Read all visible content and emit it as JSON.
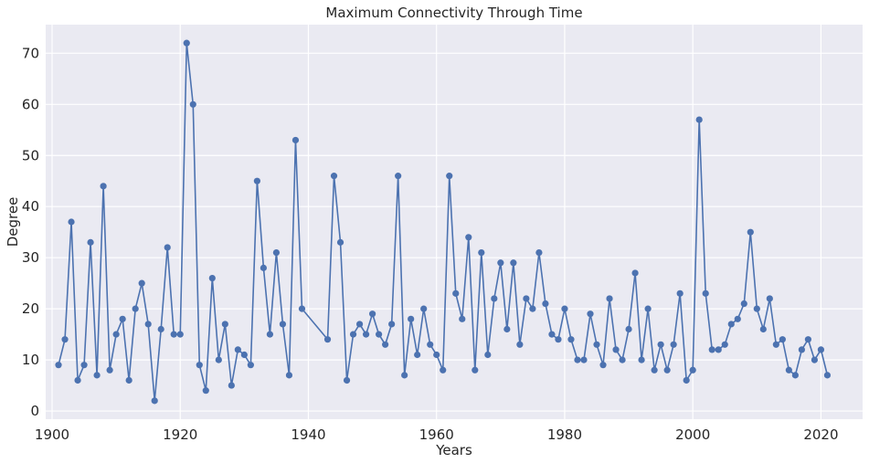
{
  "chart_data": {
    "type": "line",
    "title": "Maximum Connectivity Through Time",
    "xlabel": "Years",
    "ylabel": "Degree",
    "xlim": [
      1899.0,
      2026.5
    ],
    "ylim": [
      -1.6,
      75.6
    ],
    "xticks": [
      1900,
      1920,
      1940,
      1960,
      1980,
      2000,
      2020
    ],
    "yticks": [
      0,
      10,
      20,
      30,
      40,
      50,
      60,
      70
    ],
    "grid": true,
    "markers": true,
    "colors": {
      "series": "#4c72b0",
      "background": "#eaeaf2",
      "grid": "#ffffff",
      "text": "#262626"
    },
    "series": [
      {
        "x": [
          1901,
          1902,
          1903,
          1904,
          1905,
          1906,
          1907,
          1908,
          1909,
          1910,
          1911,
          1912,
          1913,
          1914,
          1915,
          1916,
          1917,
          1918,
          1919,
          1920,
          1921,
          1922,
          1923,
          1924,
          1925,
          1926,
          1927,
          1928,
          1929,
          1930,
          1931,
          1932,
          1933,
          1934,
          1935,
          1936,
          1937,
          1938,
          1939,
          1943,
          1944,
          1945,
          1946,
          1947,
          1948,
          1949,
          1950,
          1951,
          1952,
          1953,
          1954,
          1955,
          1956,
          1957,
          1958,
          1959,
          1960,
          1961,
          1962,
          1963,
          1964,
          1965,
          1966,
          1967,
          1968,
          1969,
          1970,
          1971,
          1972,
          1973,
          1974,
          1975,
          1976,
          1977,
          1978,
          1979,
          1980,
          1981,
          1982,
          1983,
          1984,
          1985,
          1986,
          1987,
          1988,
          1989,
          1990,
          1991,
          1992,
          1993,
          1994,
          1995,
          1996,
          1997,
          1998,
          1999,
          2000,
          2001,
          2002,
          2003,
          2004,
          2005,
          2006,
          2007,
          2008,
          2009,
          2010,
          2011,
          2012,
          2013,
          2014,
          2015,
          2016,
          2017,
          2018,
          2019,
          2020,
          2021
        ],
        "values": [
          9,
          14,
          37,
          6,
          9,
          33,
          7,
          44,
          8,
          15,
          18,
          6,
          20,
          25,
          17,
          2,
          16,
          32,
          15,
          15,
          72,
          60,
          9,
          4,
          26,
          10,
          17,
          5,
          12,
          11,
          9,
          45,
          28,
          15,
          31,
          17,
          7,
          53,
          20,
          14,
          46,
          33,
          6,
          15,
          17,
          15,
          19,
          15,
          13,
          17,
          46,
          7,
          18,
          11,
          20,
          13,
          11,
          8,
          46,
          23,
          18,
          34,
          8,
          31,
          11,
          22,
          29,
          16,
          29,
          13,
          22,
          20,
          31,
          21,
          15,
          14,
          20,
          14,
          10,
          10,
          19,
          13,
          9,
          22,
          12,
          10,
          16,
          27,
          10,
          20,
          8,
          13,
          8,
          13,
          23,
          6,
          8,
          57,
          23,
          12,
          12,
          13,
          17,
          18,
          21,
          35,
          20,
          16,
          22,
          13,
          14,
          8,
          7,
          12,
          14,
          10,
          12,
          7
        ]
      }
    ]
  }
}
